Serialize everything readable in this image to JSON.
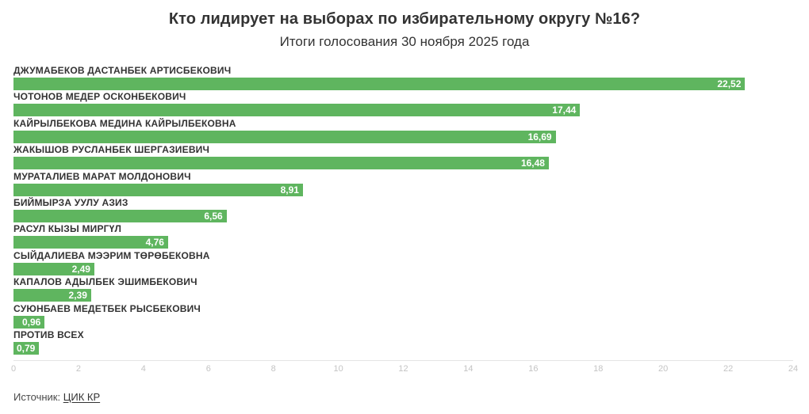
{
  "chart_data": {
    "type": "bar",
    "orientation": "horizontal",
    "title": "Кто лидирует на выборах по избирательному округу №16?",
    "subtitle": "Итоги голосования 30 ноября 2025 года",
    "categories": [
      "ДЖУМАБЕКОВ ДАСТАНБЕК АРТИСБЕКОВИЧ",
      "ЧОТОНОВ МЕДЕР ОСКОНБЕКОВИЧ",
      "КАЙРЫЛБЕКОВА МЕДИНА КАЙРЫЛБЕКОВНА",
      "ЖАКЫШОВ РУСЛАНБЕК ШЕРГАЗИЕВИЧ",
      "МУРАТАЛИЕВ МАРАТ МОЛДОНОВИЧ",
      "БИЙМЫРЗА УУЛУ АЗИЗ",
      "РАСУЛ КЫЗЫ МИРГҮЛ",
      "СЫЙДАЛИЕВА МЭЭРИМ ТӨРӨБЕКОВНА",
      "КАПАЛОВ АДЫЛБЕК ЭШИМБЕКОВИЧ",
      "СУЮНБАЕВ МЕДЕТБЕК РЫСБЕКОВИЧ",
      "ПРОТИВ ВСЕХ"
    ],
    "values": [
      22.52,
      17.44,
      16.69,
      16.48,
      8.91,
      6.56,
      4.76,
      2.49,
      2.39,
      0.96,
      0.79
    ],
    "value_labels": [
      "22,52",
      "17,44",
      "16,69",
      "16,48",
      "8,91",
      "6,56",
      "4,76",
      "2,49",
      "2,39",
      "0,96",
      "0,79"
    ],
    "xlabel": "",
    "ylabel": "",
    "xlim": [
      0,
      24
    ],
    "x_ticks": [
      0,
      2,
      4,
      6,
      8,
      10,
      12,
      14,
      16,
      18,
      20,
      22,
      24
    ],
    "grid": false,
    "legend": "none",
    "bar_color": "#5fb55f",
    "value_label_color": "#ffffff",
    "axis_tick_color": "#c4c4c4"
  },
  "footer": {
    "source_label": "Источник:",
    "source_link": "ЦИК КР"
  }
}
